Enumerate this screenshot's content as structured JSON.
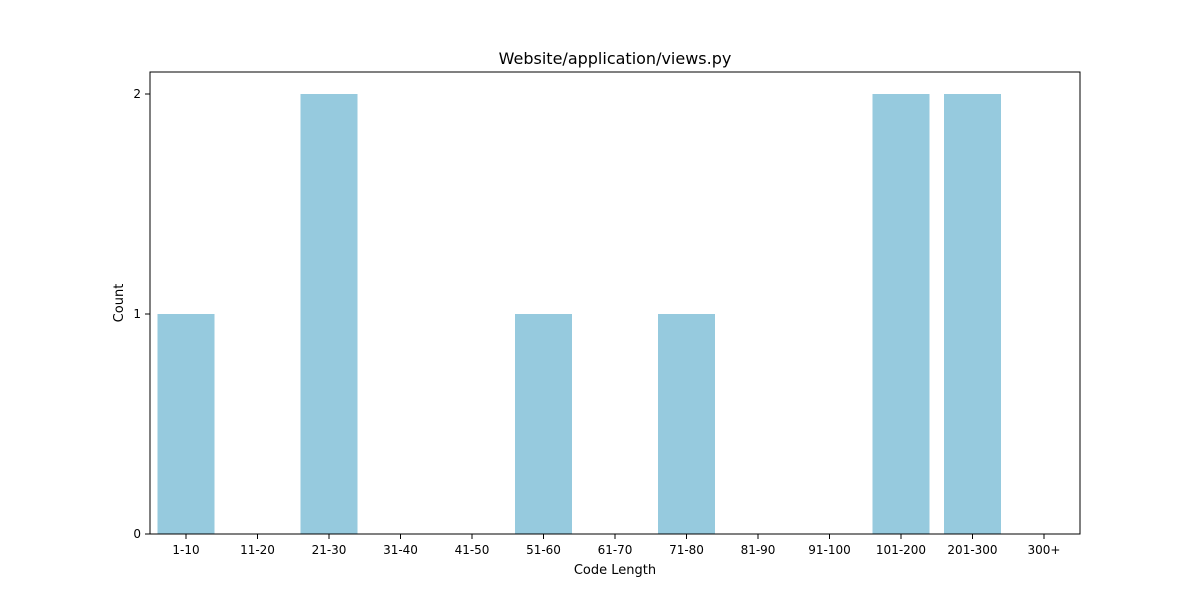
{
  "chart_data": {
    "type": "bar",
    "title": "Website/application/views.py",
    "xlabel": "Code Length",
    "ylabel": "Count",
    "categories": [
      "1-10",
      "11-20",
      "21-30",
      "31-40",
      "41-50",
      "51-60",
      "61-70",
      "71-80",
      "81-90",
      "91-100",
      "101-200",
      "201-300",
      "300+"
    ],
    "values": [
      1,
      0,
      2,
      0,
      0,
      1,
      0,
      1,
      0,
      0,
      2,
      2,
      0
    ],
    "yticks": [
      "0",
      "1",
      "2"
    ],
    "ylim": [
      0,
      2.1
    ],
    "grid": false,
    "legend": "none",
    "bar_color": "#96cade"
  }
}
